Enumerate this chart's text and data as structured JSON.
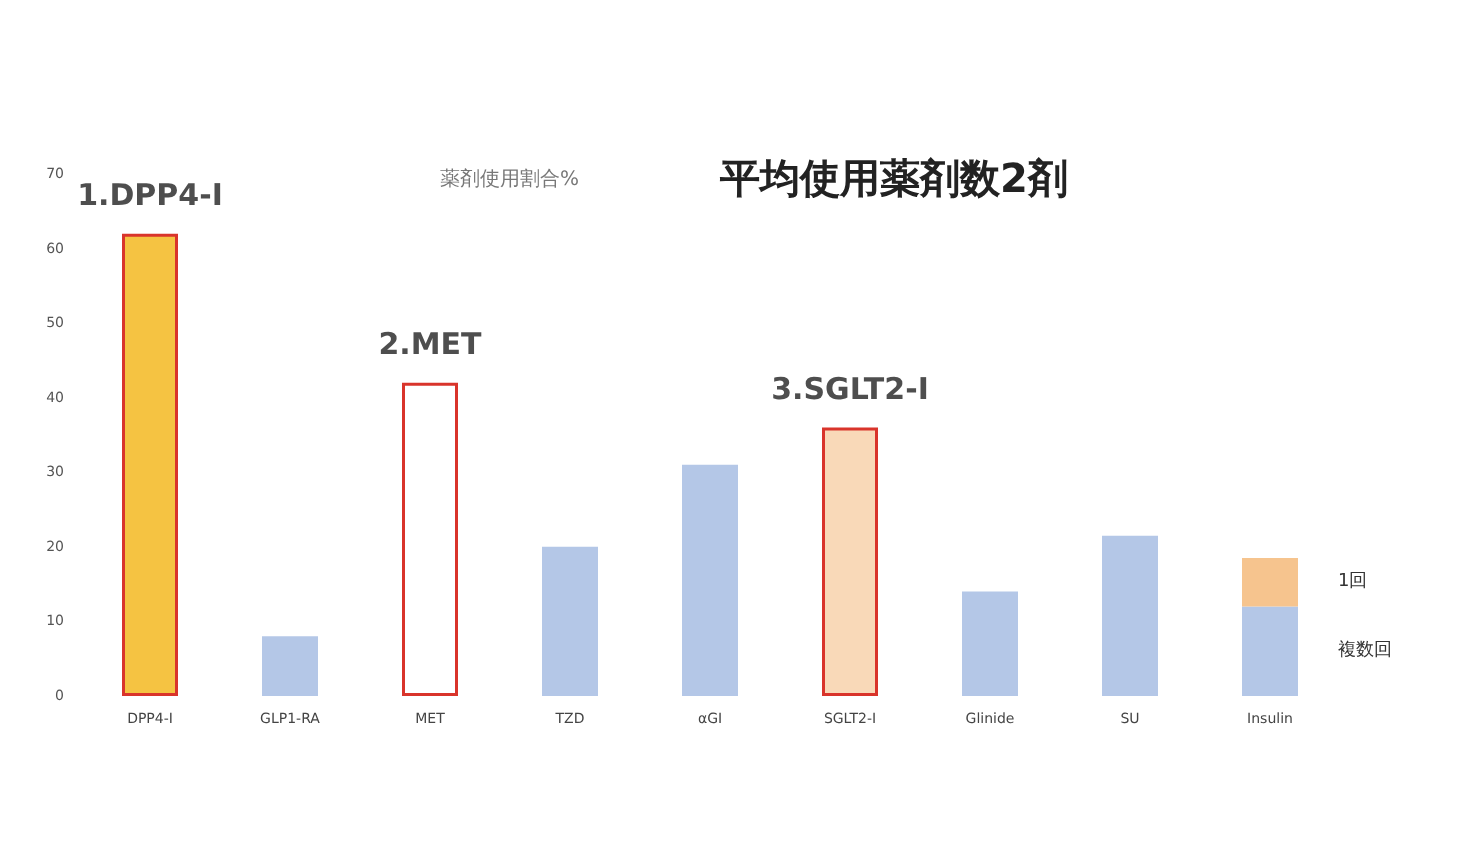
{
  "chart_data": {
    "type": "bar",
    "title": "平均使用薬剤数2剤",
    "subtitle": "薬剤使用割合%",
    "categories": [
      "DPP4-I",
      "GLP1-RA",
      "MET",
      "TZD",
      "αGI",
      "SGLT2-I",
      "Glinide",
      "SU",
      "Insulin"
    ],
    "series": [
      {
        "colors": [
          "#f5c342",
          "#b4c7e7",
          "#ffffff",
          "#b4c7e7",
          "#b4c7e7",
          "#f9d9b8",
          "#b4c7e7",
          "#b4c7e7",
          null
        ],
        "values": [
          62,
          8,
          42,
          20,
          31,
          36,
          14,
          21.5,
          null
        ]
      },
      {
        "name": "複数回",
        "color": "#b4c7e7",
        "values": [
          null,
          null,
          null,
          null,
          null,
          null,
          null,
          null,
          12
        ]
      },
      {
        "name": "1回",
        "color": "#f6c48e",
        "values": [
          null,
          null,
          null,
          null,
          null,
          null,
          null,
          null,
          6.5
        ]
      }
    ],
    "stacked": true,
    "ylim": [
      0,
      70
    ],
    "yticks": [
      0,
      10,
      20,
      30,
      40,
      50,
      60,
      70
    ],
    "grid": false,
    "legend": false,
    "annotations": [
      {
        "text": "1.DPP4-I",
        "x": "DPP4-I",
        "y": 62
      },
      {
        "text": "2.MET",
        "x": "MET",
        "y": 42
      },
      {
        "text": "3.SGLT2-I",
        "x": "SGLT2-I",
        "y": 36
      }
    ]
  }
}
